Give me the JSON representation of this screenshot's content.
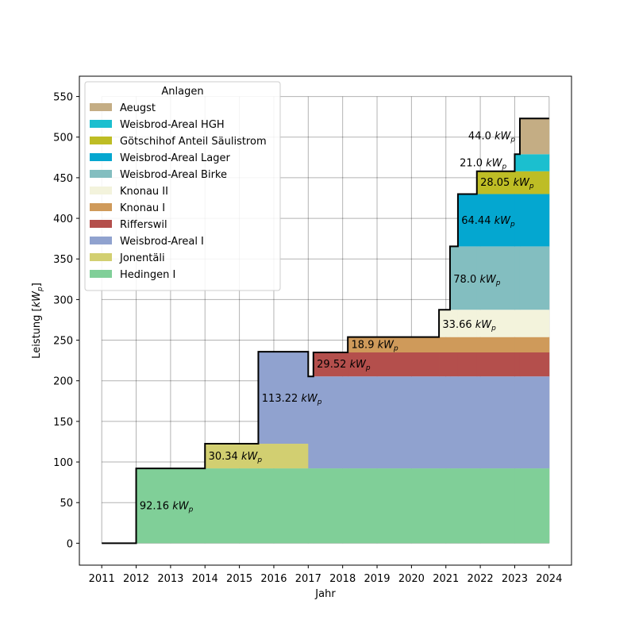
{
  "chart_data": {
    "type": "area",
    "xlabel": "Jahr",
    "ylabel": "Leistung",
    "ylabel_unit_base": "kW",
    "ylabel_unit_sub": "p",
    "unit_base": "kW",
    "unit_sub": "p",
    "xlim": [
      2010.35,
      2024.65
    ],
    "ylim": [
      -27,
      575
    ],
    "xticks": [
      2011,
      2012,
      2013,
      2014,
      2015,
      2016,
      2017,
      2018,
      2019,
      2020,
      2021,
      2022,
      2023,
      2024
    ],
    "yticks": [
      0,
      50,
      100,
      150,
      200,
      250,
      300,
      350,
      400,
      450,
      500,
      550
    ],
    "grid": true,
    "legend": {
      "title": "Anlagen",
      "placement": "top-left"
    },
    "series": [
      {
        "name": "Hedingen I",
        "color": "#80cf98",
        "label": "92.16",
        "segments": [
          {
            "x0": 2012.0,
            "x1": 2024.0,
            "value": 92.16
          }
        ]
      },
      {
        "name": "Jonentäli",
        "color": "#d2cf71",
        "label": "30.34",
        "segments": [
          {
            "x0": 2014.0,
            "x1": 2017.0,
            "value": 30.34
          }
        ]
      },
      {
        "name": "Weisbrod-Areal I",
        "color": "#90a2cf",
        "label": "113.22",
        "segments": [
          {
            "x0": 2015.55,
            "x1": 2024.0,
            "value": 113.22
          }
        ]
      },
      {
        "name": "Rifferswil",
        "color": "#b44f4c",
        "label": "29.52",
        "segments": [
          {
            "x0": 2017.15,
            "x1": 2024.0,
            "value": 29.52
          }
        ]
      },
      {
        "name": "Knonau I",
        "color": "#cf9a5a",
        "label": "18.9",
        "segments": [
          {
            "x0": 2018.15,
            "x1": 2024.0,
            "value": 18.9
          }
        ]
      },
      {
        "name": "Knonau II",
        "color": "#f3f3dc",
        "label": "33.66",
        "segments": [
          {
            "x0": 2020.8,
            "x1": 2024.0,
            "value": 33.66
          }
        ]
      },
      {
        "name": "Weisbrod-Areal Birke",
        "color": "#83bec0",
        "label": "78.0",
        "segments": [
          {
            "x0": 2021.12,
            "x1": 2024.0,
            "value": 78.0
          }
        ]
      },
      {
        "name": "Weisbrod-Areal Lager",
        "color": "#04a7d0",
        "label": "64.44",
        "segments": [
          {
            "x0": 2021.35,
            "x1": 2024.0,
            "value": 64.44
          }
        ]
      },
      {
        "name": "Götschihof Anteil Säulistrom",
        "color": "#bebd25",
        "label": "28.05",
        "segments": [
          {
            "x0": 2021.9,
            "x1": 2024.0,
            "value": 28.05
          }
        ]
      },
      {
        "name": "Weisbrod-Areal HGH",
        "color": "#1bbfcf",
        "label": "21.0",
        "segments": [
          {
            "x0": 2023.0,
            "x1": 2024.0,
            "value": 21.0
          }
        ]
      },
      {
        "name": "Aeugst",
        "color": "#c4ad84",
        "label": "44.0",
        "segments": [
          {
            "x0": 2023.15,
            "x1": 2024.0,
            "value": 44.0
          }
        ]
      }
    ],
    "total_line": {
      "color": "#000000",
      "points": [
        [
          2011.0,
          0
        ],
        [
          2012.0,
          0
        ],
        [
          2012.0,
          92.16
        ],
        [
          2014.0,
          92.16
        ],
        [
          2014.0,
          122.5
        ],
        [
          2015.55,
          122.5
        ],
        [
          2015.55,
          235.72
        ],
        [
          2017.0,
          235.72
        ],
        [
          2017.0,
          205.38
        ],
        [
          2017.15,
          205.38
        ],
        [
          2017.15,
          234.9
        ],
        [
          2018.15,
          234.9
        ],
        [
          2018.15,
          253.8
        ],
        [
          2020.8,
          253.8
        ],
        [
          2020.8,
          287.46
        ],
        [
          2021.12,
          287.46
        ],
        [
          2021.12,
          365.46
        ],
        [
          2021.35,
          365.46
        ],
        [
          2021.35,
          429.9
        ],
        [
          2021.9,
          429.9
        ],
        [
          2021.9,
          457.95
        ],
        [
          2023.0,
          457.95
        ],
        [
          2023.0,
          478.95
        ],
        [
          2023.15,
          478.95
        ],
        [
          2023.15,
          522.95
        ],
        [
          2024.0,
          522.95
        ]
      ]
    },
    "annotations": [
      {
        "series": "Hedingen I",
        "text": "92.16",
        "x": 2012.1,
        "y": 47
      },
      {
        "series": "Jonentäli",
        "text": "30.34",
        "x": 2014.1,
        "y": 108
      },
      {
        "series": "Weisbrod-Areal I",
        "text": "113.22",
        "x": 2015.65,
        "y": 179
      },
      {
        "series": "Rifferswil",
        "text": "29.52",
        "x": 2017.25,
        "y": 221
      },
      {
        "series": "Knonau I",
        "text": "18.9",
        "x": 2018.25,
        "y": 245
      },
      {
        "series": "Knonau II",
        "text": "33.66",
        "x": 2020.9,
        "y": 270
      },
      {
        "series": "Weisbrod-Areal Birke",
        "text": "78.0",
        "x": 2021.22,
        "y": 326
      },
      {
        "series": "Weisbrod-Areal Lager",
        "text": "64.44",
        "x": 2021.45,
        "y": 398
      },
      {
        "series": "Götschihof Anteil Säulistrom",
        "text": "28.05",
        "x": 2022.0,
        "y": 445
      },
      {
        "series": "Weisbrod-Areal HGH",
        "text": "21.0",
        "x": 2021.4,
        "y": 469
      },
      {
        "series": "Aeugst",
        "text": "44.0",
        "x": 2021.65,
        "y": 502
      }
    ]
  }
}
